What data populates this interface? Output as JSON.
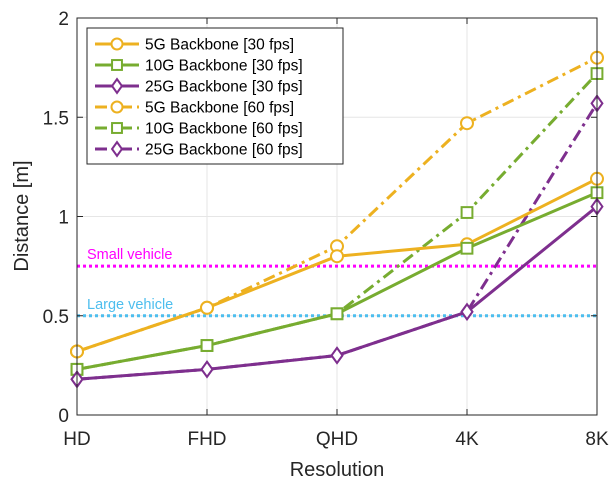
{
  "chart_data": {
    "type": "line",
    "categories": [
      "HD",
      "FHD",
      "QHD",
      "4K",
      "8K"
    ],
    "xlabel": "Resolution",
    "ylabel": "Distance [m]",
    "ylim": [
      0,
      2
    ],
    "yticks": [
      0,
      0.5,
      1,
      1.5,
      2
    ],
    "ytick_labels": [
      "0",
      "0.5",
      "1",
      "1.5",
      "2"
    ],
    "grid": true,
    "legend_placement": "top-left",
    "series": [
      {
        "name": "5G Backbone [30 fps]",
        "values": [
          0.32,
          0.54,
          0.8,
          0.86,
          1.19
        ],
        "color": "#EDB120",
        "marker": "circle",
        "style": "solid"
      },
      {
        "name": "10G Backbone [30 fps]",
        "values": [
          0.23,
          0.35,
          0.51,
          0.84,
          1.12
        ],
        "color": "#77AC30",
        "marker": "square",
        "style": "solid"
      },
      {
        "name": "25G Backbone [30 fps]",
        "values": [
          0.18,
          0.23,
          0.3,
          0.52,
          1.05
        ],
        "color": "#7E2F8E",
        "marker": "diamond",
        "style": "solid"
      },
      {
        "name": "5G Backbone [60 fps]",
        "values": [
          0.32,
          0.54,
          0.85,
          1.47,
          1.8
        ],
        "color": "#EDB120",
        "marker": "circle",
        "style": "dashdot"
      },
      {
        "name": "10G Backbone [60 fps]",
        "values": [
          0.23,
          0.35,
          0.51,
          1.02,
          1.72
        ],
        "color": "#77AC30",
        "marker": "square",
        "style": "dashdot"
      },
      {
        "name": "25G Backbone [60 fps]",
        "values": [
          0.18,
          0.23,
          0.3,
          0.52,
          1.57
        ],
        "color": "#7E2F8E",
        "marker": "diamond",
        "style": "dashdot"
      }
    ],
    "reference_lines": [
      {
        "label": "Small vehicle",
        "y": 0.75,
        "color": "#FF00FF"
      },
      {
        "label": "Large vehicle",
        "y": 0.5,
        "color": "#4DBEEE"
      }
    ]
  }
}
